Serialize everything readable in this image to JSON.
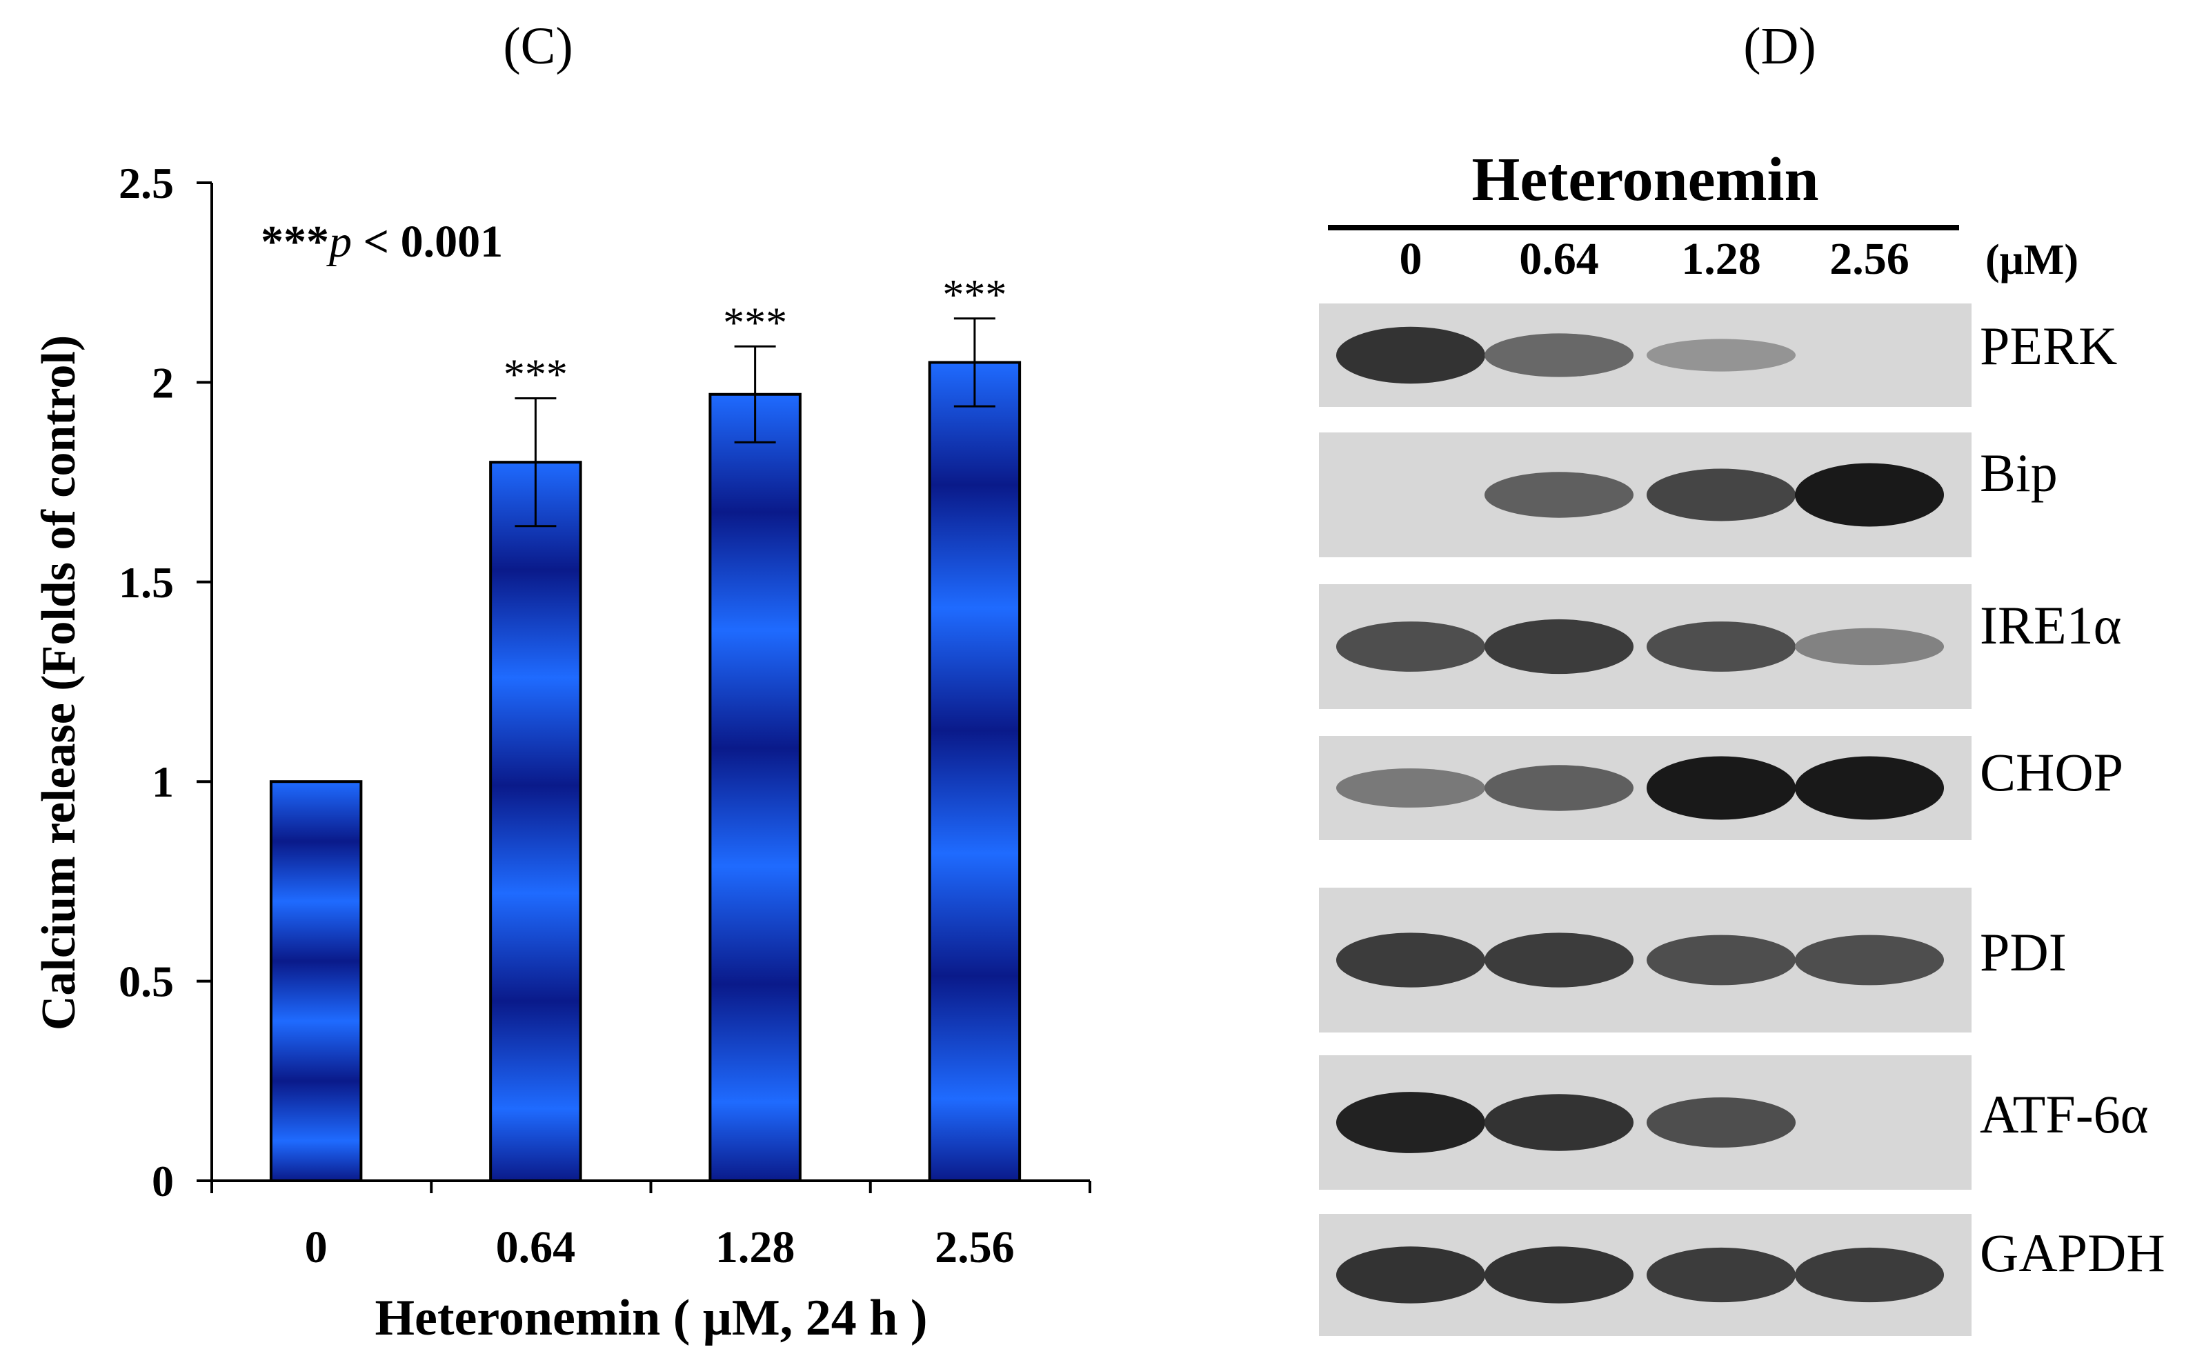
{
  "panels": {
    "c_label": "(C)",
    "d_label": "(D)"
  },
  "chart_data": {
    "type": "bar",
    "categories": [
      "0",
      "0.64",
      "1.28",
      "2.56"
    ],
    "values": [
      1.0,
      1.8,
      1.97,
      2.05
    ],
    "error": [
      0,
      0.16,
      0.12,
      0.11
    ],
    "significance": [
      "",
      "***",
      "***",
      "***"
    ],
    "annotation": {
      "stars": "***",
      "p": "p",
      "rest": " < 0.001"
    },
    "xlabel": "Heteronemin ( μM, 24 h )",
    "ylabel": "Calcium release (Folds of control)",
    "ylim": [
      0,
      2.5
    ],
    "yticks": [
      "0",
      "0.5",
      "1",
      "1.5",
      "2",
      "2.5"
    ],
    "grid": false,
    "bar_color_light": "#1f6bff",
    "bar_color_dark": "#0a1a8a"
  },
  "blot": {
    "title": "Heteronemin",
    "unit": "(μM)",
    "lanes": [
      "0",
      "0.64",
      "1.28",
      "2.56"
    ],
    "rows": [
      {
        "label": "PERK",
        "intensity": [
          0.85,
          0.55,
          0.3,
          0.0
        ]
      },
      {
        "label": "Bip",
        "intensity": [
          0.0,
          0.6,
          0.75,
          1.0
        ]
      },
      {
        "label": "IRE1α",
        "intensity": [
          0.7,
          0.8,
          0.7,
          0.4
        ]
      },
      {
        "label": "CHOP",
        "intensity": [
          0.45,
          0.6,
          1.0,
          1.0
        ]
      },
      {
        "label": "PDI",
        "intensity": [
          0.8,
          0.8,
          0.7,
          0.7
        ]
      },
      {
        "label": "ATF-6α",
        "intensity": [
          0.95,
          0.85,
          0.7,
          0.0
        ]
      },
      {
        "label": "GAPDH",
        "intensity": [
          0.85,
          0.85,
          0.8,
          0.8
        ]
      }
    ]
  }
}
